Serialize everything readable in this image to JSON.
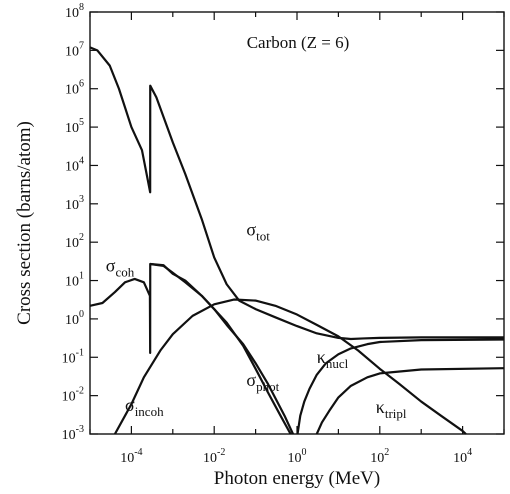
{
  "chart_data": {
    "type": "line",
    "title": "Carbon (Z = 6)",
    "xlabel": "Photon energy (MeV)",
    "ylabel": "Cross section (barns/atom)",
    "xscale": "log",
    "yscale": "log",
    "xlim": [
      1e-05,
      100000
    ],
    "ylim": [
      0.001,
      100000000
    ],
    "grid": false,
    "x_ticks": [
      {
        "value": 0.0001,
        "base": "10",
        "exp": "-4"
      },
      {
        "value": 0.01,
        "base": "10",
        "exp": "-2"
      },
      {
        "value": 1,
        "base": "10",
        "exp": "0"
      },
      {
        "value": 100,
        "base": "10",
        "exp": "2"
      },
      {
        "value": 10000,
        "base": "10",
        "exp": "4"
      }
    ],
    "y_ticks": [
      {
        "value": 0.001,
        "base": "10",
        "exp": "-3"
      },
      {
        "value": 0.01,
        "base": "10",
        "exp": "-2"
      },
      {
        "value": 0.1,
        "base": "10",
        "exp": "-1"
      },
      {
        "value": 1,
        "base": "10",
        "exp": "0"
      },
      {
        "value": 10,
        "base": "10",
        "exp": "1"
      },
      {
        "value": 100,
        "base": "10",
        "exp": "2"
      },
      {
        "value": 1000,
        "base": "10",
        "exp": "3"
      },
      {
        "value": 10000,
        "base": "10",
        "exp": "4"
      },
      {
        "value": 100000,
        "base": "10",
        "exp": "5"
      },
      {
        "value": 1000000,
        "base": "10",
        "exp": "6"
      },
      {
        "value": 10000000,
        "base": "10",
        "exp": "7"
      },
      {
        "value": 100000000,
        "base": "10",
        "exp": "8"
      }
    ],
    "series": [
      {
        "key": "tot",
        "values": [
          [
            1e-05,
            12000000
          ],
          [
            1.5e-05,
            10000000
          ],
          [
            3e-05,
            4000000
          ],
          [
            5e-05,
            1000000
          ],
          [
            0.0001,
            100000
          ],
          [
            0.00018,
            25000
          ],
          [
            0.000284,
            2000
          ],
          [
            0.000285,
            1200000
          ],
          [
            0.0004,
            600000
          ],
          [
            0.001,
            40000
          ],
          [
            0.002,
            6000
          ],
          [
            0.005,
            400
          ],
          [
            0.01,
            40
          ],
          [
            0.02,
            8
          ],
          [
            0.04,
            3
          ],
          [
            0.1,
            1.8
          ],
          [
            0.3,
            1.1
          ],
          [
            1,
            0.65
          ],
          [
            3,
            0.42
          ],
          [
            10,
            0.32
          ],
          [
            20,
            0.3
          ],
          [
            40,
            0.31
          ],
          [
            100,
            0.32
          ],
          [
            1000,
            0.33
          ],
          [
            10000,
            0.33
          ],
          [
            100000,
            0.33
          ]
        ]
      },
      {
        "key": "coh",
        "values": [
          [
            1e-05,
            2.2
          ],
          [
            2e-05,
            2.6
          ],
          [
            4e-05,
            5
          ],
          [
            7e-05,
            9
          ],
          [
            0.00012,
            11
          ],
          [
            0.0002,
            9
          ],
          [
            0.00028,
            4
          ],
          [
            0.000284,
            0.13
          ],
          [
            0.000285,
            27
          ],
          [
            0.0006,
            25
          ],
          [
            0.001,
            15
          ],
          [
            0.002,
            10
          ],
          [
            0.005,
            4
          ],
          [
            0.01,
            1.8
          ],
          [
            0.02,
            0.7
          ],
          [
            0.05,
            0.22
          ],
          [
            0.1,
            0.07
          ],
          [
            0.2,
            0.02
          ],
          [
            0.5,
            0.003
          ],
          [
            0.8,
            0.001
          ]
        ]
      },
      {
        "key": "phot",
        "values": [
          [
            0.000285,
            27
          ],
          [
            0.0006,
            24
          ],
          [
            0.001,
            16
          ],
          [
            0.002,
            9
          ],
          [
            0.005,
            4
          ],
          [
            0.01,
            1.8
          ],
          [
            0.02,
            0.8
          ],
          [
            0.05,
            0.2
          ],
          [
            0.1,
            0.05
          ],
          [
            0.2,
            0.012
          ],
          [
            0.4,
            0.003
          ],
          [
            0.7,
            0.001
          ]
        ]
      },
      {
        "key": "incoh",
        "values": [
          [
            4e-05,
            0.001
          ],
          [
            0.0001,
            0.006
          ],
          [
            0.0002,
            0.03
          ],
          [
            0.0005,
            0.15
          ],
          [
            0.001,
            0.4
          ],
          [
            0.003,
            1.2
          ],
          [
            0.01,
            2.4
          ],
          [
            0.03,
            3.2
          ],
          [
            0.1,
            3.0
          ],
          [
            0.3,
            2.2
          ],
          [
            1,
            1.3
          ],
          [
            3,
            0.7
          ],
          [
            10,
            0.35
          ],
          [
            30,
            0.15
          ],
          [
            100,
            0.05
          ],
          [
            300,
            0.02
          ],
          [
            1000,
            0.007
          ],
          [
            3000,
            0.003
          ],
          [
            10000,
            0.0012
          ],
          [
            12000,
            0.001
          ]
        ]
      },
      {
        "key": "nucl",
        "values": [
          [
            1.03,
            0.001
          ],
          [
            1.2,
            0.003
          ],
          [
            1.5,
            0.007
          ],
          [
            2,
            0.015
          ],
          [
            3,
            0.035
          ],
          [
            5,
            0.07
          ],
          [
            10,
            0.12
          ],
          [
            20,
            0.17
          ],
          [
            50,
            0.22
          ],
          [
            100,
            0.25
          ],
          [
            1000,
            0.28
          ],
          [
            100000,
            0.29
          ]
        ]
      },
      {
        "key": "tripl",
        "values": [
          [
            3,
            0.001
          ],
          [
            4,
            0.002
          ],
          [
            6,
            0.004
          ],
          [
            10,
            0.009
          ],
          [
            20,
            0.018
          ],
          [
            50,
            0.03
          ],
          [
            100,
            0.038
          ],
          [
            1000,
            0.048
          ],
          [
            100000,
            0.052
          ]
        ]
      }
    ],
    "annotations": [
      {
        "key": "tot",
        "base": "σ",
        "sub": "tot",
        "x": 0.06,
        "y": 150
      },
      {
        "key": "coh",
        "base": "σ",
        "sub": "coh",
        "x": 2.4e-05,
        "y": 17
      },
      {
        "key": "phot",
        "base": "σ",
        "sub": "phot",
        "x": 0.06,
        "y": 0.018
      },
      {
        "key": "incoh",
        "base": "σ",
        "sub": "incoh",
        "x": 7e-05,
        "y": 0.004
      },
      {
        "key": "nucl",
        "base": "κ",
        "sub": "nucl",
        "x": 3,
        "y": 0.07
      },
      {
        "key": "tripl",
        "base": "κ",
        "sub": "tripl",
        "x": 80,
        "y": 0.0035
      }
    ]
  }
}
